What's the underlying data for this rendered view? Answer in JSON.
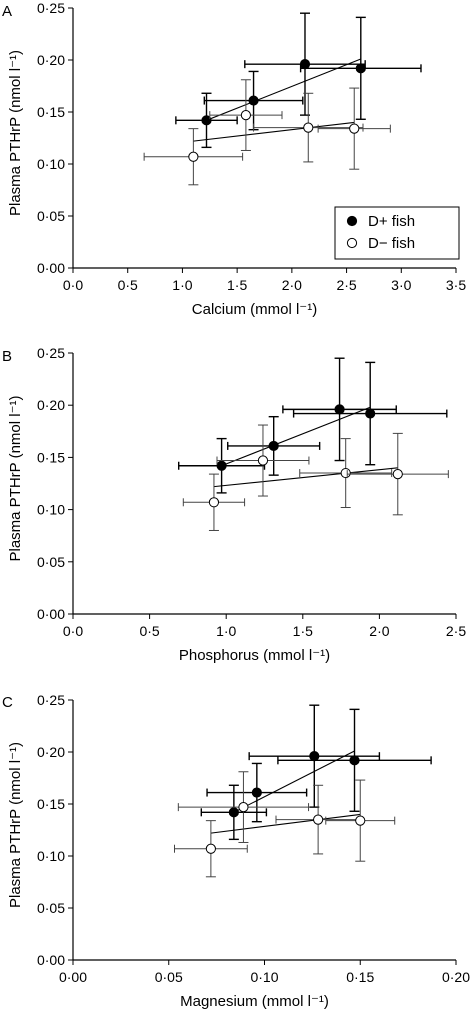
{
  "chart_data": [
    {
      "type": "scatter",
      "panel": "A",
      "xlabel": "Calcium (mmol l⁻¹)",
      "ylabel": "Plasma PTHrP (nmol l⁻¹)",
      "xlim": [
        0,
        3.5
      ],
      "ylim": [
        0,
        0.25
      ],
      "xticks": [
        0,
        0.5,
        1.0,
        1.5,
        2.0,
        2.5,
        3.0,
        3.5
      ],
      "xtick_labels": [
        "0·0",
        "0·5",
        "1·0",
        "1·5",
        "2·0",
        "2·5",
        "3·0",
        "3·5"
      ],
      "yticks": [
        0,
        0.05,
        0.1,
        0.15,
        0.2,
        0.25
      ],
      "ytick_labels": [
        "0·00",
        "0·05",
        "0·10",
        "0·15",
        "0·20",
        "0·25"
      ],
      "legend": {
        "position": "bottom-right",
        "entries": [
          {
            "label": "D+ fish",
            "marker": "filled"
          },
          {
            "label": "D− fish",
            "marker": "open"
          }
        ]
      },
      "series": [
        {
          "name": "D+ fish",
          "marker": "filled",
          "points": [
            {
              "x": 1.22,
              "y": 0.142,
              "xerr": 0.28,
              "yerr": 0.026
            },
            {
              "x": 1.65,
              "y": 0.161,
              "xerr": 0.45,
              "yerr": 0.028
            },
            {
              "x": 2.12,
              "y": 0.196,
              "xerr": 0.55,
              "yerr": 0.049
            },
            {
              "x": 2.63,
              "y": 0.192,
              "xerr": 0.55,
              "yerr": 0.049
            }
          ],
          "fit": {
            "x": [
              1.22,
              2.63
            ],
            "y": [
              0.142,
              0.201
            ]
          }
        },
        {
          "name": "D− fish",
          "marker": "open",
          "points": [
            {
              "x": 1.1,
              "y": 0.107,
              "xerr": 0.45,
              "yerr": 0.027
            },
            {
              "x": 1.58,
              "y": 0.147,
              "xerr": 0.33,
              "yerr": 0.034
            },
            {
              "x": 2.15,
              "y": 0.135,
              "xerr": 0.5,
              "yerr": 0.033
            },
            {
              "x": 2.57,
              "y": 0.134,
              "xerr": 0.33,
              "yerr": 0.039
            }
          ],
          "fit": {
            "x": [
              1.1,
              2.57
            ],
            "y": [
              0.122,
              0.14
            ]
          }
        }
      ]
    },
    {
      "type": "scatter",
      "panel": "B",
      "xlabel": "Phosphorus (mmol l⁻¹)",
      "ylabel": "Plasma PTHrP (nmol l⁻¹)",
      "xlim": [
        0,
        2.5
      ],
      "ylim": [
        0,
        0.25
      ],
      "xticks": [
        0,
        0.5,
        1.0,
        1.5,
        2.0,
        2.5
      ],
      "xtick_labels": [
        "0·0",
        "0·5",
        "1·0",
        "1·5",
        "2·0",
        "2·5"
      ],
      "yticks": [
        0,
        0.05,
        0.1,
        0.15,
        0.2,
        0.25
      ],
      "ytick_labels": [
        "0·00",
        "0·05",
        "0·10",
        "0·15",
        "0·20",
        "0·25"
      ],
      "series": [
        {
          "name": "D+ fish",
          "marker": "filled",
          "points": [
            {
              "x": 0.97,
              "y": 0.142,
              "xerr": 0.28,
              "yerr": 0.026
            },
            {
              "x": 1.31,
              "y": 0.161,
              "xerr": 0.3,
              "yerr": 0.028
            },
            {
              "x": 1.74,
              "y": 0.196,
              "xerr": 0.37,
              "yerr": 0.049
            },
            {
              "x": 1.94,
              "y": 0.192,
              "xerr": 0.5,
              "yerr": 0.049
            }
          ],
          "fit": {
            "x": [
              0.97,
              1.94
            ],
            "y": [
              0.142,
              0.198
            ]
          }
        },
        {
          "name": "D− fish",
          "marker": "open",
          "points": [
            {
              "x": 0.92,
              "y": 0.107,
              "xerr": 0.2,
              "yerr": 0.027
            },
            {
              "x": 1.24,
              "y": 0.147,
              "xerr": 0.3,
              "yerr": 0.034
            },
            {
              "x": 1.78,
              "y": 0.135,
              "xerr": 0.3,
              "yerr": 0.033
            },
            {
              "x": 2.12,
              "y": 0.134,
              "xerr": 0.33,
              "yerr": 0.039
            }
          ],
          "fit": {
            "x": [
              0.92,
              2.12
            ],
            "y": [
              0.122,
              0.14
            ]
          }
        }
      ]
    },
    {
      "type": "scatter",
      "panel": "C",
      "xlabel": "Magnesium (mmol l⁻¹)",
      "ylabel": "Plasma PTHrP (nmol l⁻¹)",
      "xlim": [
        0,
        0.2
      ],
      "ylim": [
        0,
        0.25
      ],
      "xticks": [
        0,
        0.05,
        0.1,
        0.15,
        0.2
      ],
      "xtick_labels": [
        "0·00",
        "0·05",
        "0·10",
        "0·15",
        "0·20"
      ],
      "yticks": [
        0,
        0.05,
        0.1,
        0.15,
        0.2,
        0.25
      ],
      "ytick_labels": [
        "0·00",
        "0·05",
        "0·10",
        "0·15",
        "0·20",
        "0·25"
      ],
      "series": [
        {
          "name": "D+ fish",
          "marker": "filled",
          "points": [
            {
              "x": 0.084,
              "y": 0.142,
              "xerr": 0.017,
              "yerr": 0.026
            },
            {
              "x": 0.096,
              "y": 0.161,
              "xerr": 0.026,
              "yerr": 0.028
            },
            {
              "x": 0.126,
              "y": 0.196,
              "xerr": 0.034,
              "yerr": 0.049
            },
            {
              "x": 0.147,
              "y": 0.192,
              "xerr": 0.04,
              "yerr": 0.049
            }
          ],
          "fit": {
            "x": [
              0.084,
              0.147
            ],
            "y": [
              0.142,
              0.201
            ]
          }
        },
        {
          "name": "D− fish",
          "marker": "open",
          "points": [
            {
              "x": 0.072,
              "y": 0.107,
              "xerr": 0.019,
              "yerr": 0.027
            },
            {
              "x": 0.089,
              "y": 0.147,
              "xerr": 0.034,
              "yerr": 0.034
            },
            {
              "x": 0.128,
              "y": 0.135,
              "xerr": 0.022,
              "yerr": 0.033
            },
            {
              "x": 0.15,
              "y": 0.134,
              "xerr": 0.018,
              "yerr": 0.039
            }
          ],
          "fit": {
            "x": [
              0.072,
              0.15
            ],
            "y": [
              0.122,
              0.14
            ]
          }
        }
      ]
    }
  ]
}
